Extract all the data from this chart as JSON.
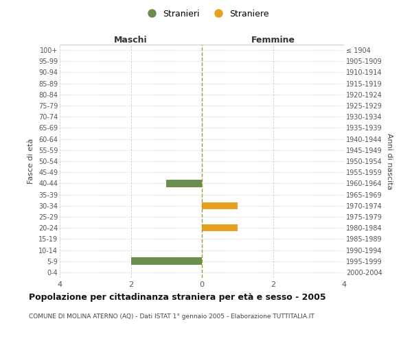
{
  "age_groups": [
    "0-4",
    "5-9",
    "10-14",
    "15-19",
    "20-24",
    "25-29",
    "30-34",
    "35-39",
    "40-44",
    "45-49",
    "50-54",
    "55-59",
    "60-64",
    "65-69",
    "70-74",
    "75-79",
    "80-84",
    "85-89",
    "90-94",
    "95-99",
    "100+"
  ],
  "birth_years": [
    "2000-2004",
    "1995-1999",
    "1990-1994",
    "1985-1989",
    "1980-1984",
    "1975-1979",
    "1970-1974",
    "1965-1969",
    "1960-1964",
    "1955-1959",
    "1950-1954",
    "1945-1949",
    "1940-1944",
    "1935-1939",
    "1930-1934",
    "1925-1929",
    "1920-1924",
    "1915-1919",
    "1910-1914",
    "1905-1909",
    "≤ 1904"
  ],
  "males": [
    0,
    2,
    0,
    0,
    0,
    0,
    0,
    0,
    1,
    0,
    0,
    0,
    0,
    0,
    0,
    0,
    0,
    0,
    0,
    0,
    0
  ],
  "females": [
    0,
    0,
    0,
    0,
    1,
    0,
    1,
    0,
    0,
    0,
    0,
    0,
    0,
    0,
    0,
    0,
    0,
    0,
    0,
    0,
    0
  ],
  "male_color": "#6b8e4e",
  "female_color": "#e8a020",
  "xlim": 4,
  "ylabel_left": "Fasce di età",
  "ylabel_right": "Anni di nascita",
  "label_maschi": "Maschi",
  "label_femmine": "Femmine",
  "legend_stranieri": "Stranieri",
  "legend_straniere": "Straniere",
  "title": "Popolazione per cittadinanza straniera per età e sesso - 2005",
  "subtitle": "COMUNE DI MOLINA ATERNO (AQ) - Dati ISTAT 1° gennaio 2005 - Elaborazione TUTTITALIA.IT",
  "bg_color": "#ffffff",
  "grid_color": "#cccccc",
  "center_line_color": "#9b9b3a"
}
